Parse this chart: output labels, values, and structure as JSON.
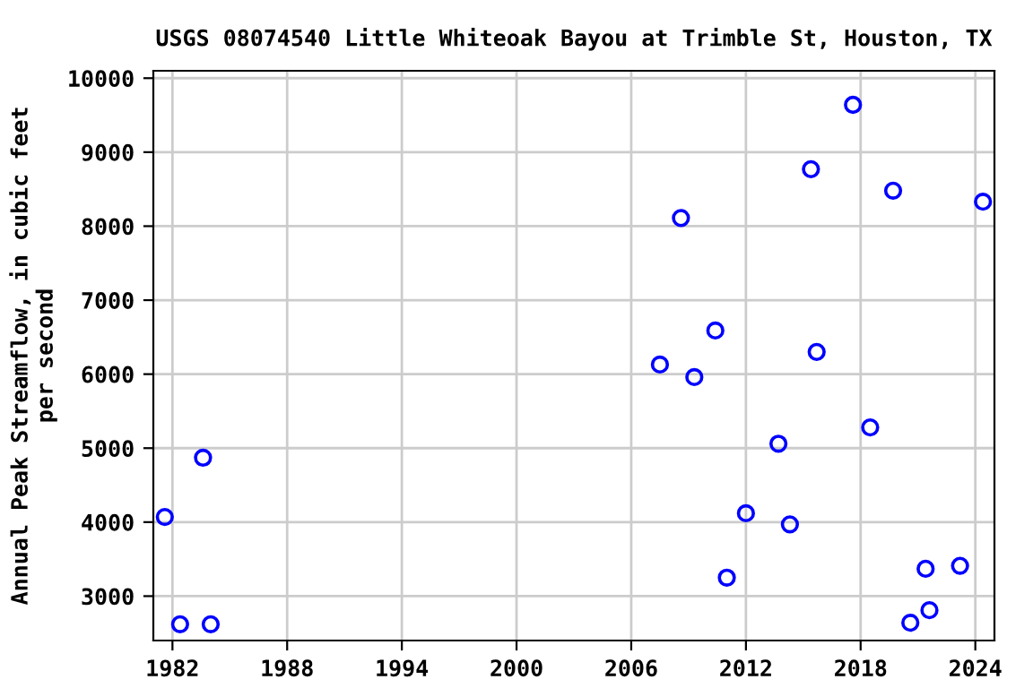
{
  "chart_data": {
    "type": "scatter",
    "title": "USGS 08074540 Little Whiteoak Bayou at Trimble St, Houston, TX",
    "ylabel": "Annual Peak Streamflow, in cubic feet\nper second",
    "series": [
      {
        "color": "#0000ff",
        "x": [
          1981.6,
          1982.4,
          1983.6,
          1984.0,
          2007.5,
          2008.6,
          2009.3,
          2010.4,
          2011.0,
          2012.0,
          2013.7,
          2014.3,
          2015.4,
          2015.7,
          2017.6,
          2018.5,
          2019.7,
          2020.6,
          2021.4,
          2021.6,
          2023.2,
          2024.4
        ],
        "values": [
          4070,
          2620,
          4870,
          2620,
          6130,
          8110,
          5960,
          6590,
          3250,
          4120,
          5060,
          3970,
          8770,
          6300,
          9640,
          5280,
          8480,
          2640,
          3370,
          2810,
          3410,
          8330
        ]
      }
    ],
    "xlim": [
      1981,
      2025
    ],
    "xticks": [
      1982,
      1988,
      1994,
      2000,
      2006,
      2012,
      2018,
      2024
    ],
    "ylim": [
      2400,
      10100
    ],
    "yticks": [
      3000,
      4000,
      5000,
      6000,
      7000,
      8000,
      9000,
      10000
    ],
    "grid": true,
    "marker": "circle"
  }
}
